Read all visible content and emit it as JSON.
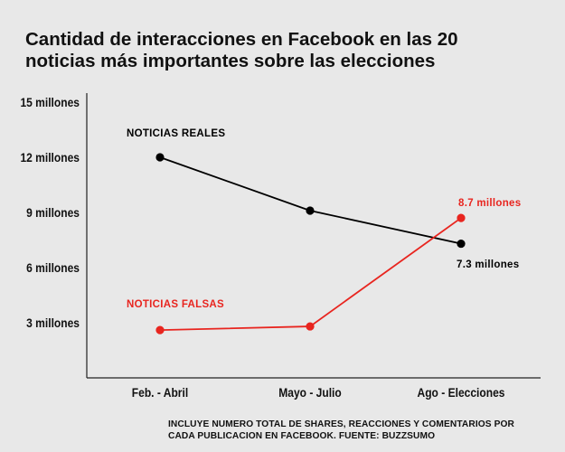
{
  "title_lines": [
    "Cantidad de interacciones en Facebook en las 20",
    "noticias más importantes sobre las elecciones"
  ],
  "footnote_lines": [
    "INCLUYE NUMERO TOTAL DE SHARES, REACCIONES Y COMENTARIOS POR",
    "CADA PUBLICACION EN FACEBOOK. FUENTE: BUZZSUMO"
  ],
  "chart_data": {
    "type": "line",
    "title": "Cantidad de interacciones en Facebook en las 20 noticias más importantes sobre las elecciones",
    "xlabel": "",
    "ylabel": "",
    "categories": [
      "Feb. - Abril",
      "Mayo - Julio",
      "Ago - Elecciones"
    ],
    "ylim": [
      0,
      15
    ],
    "yticks": [
      3,
      6,
      9,
      12,
      15
    ],
    "ytick_labels": [
      "3 millones",
      "6 millones",
      "9 millones",
      "12 millones",
      "15 millones"
    ],
    "grid": false,
    "series": [
      {
        "name": "NOTICIAS REALES",
        "color": "#000000",
        "values": [
          12,
          9.1,
          7.3
        ],
        "end_label": "7.3 millones"
      },
      {
        "name": "NOTICIAS FALSAS",
        "color": "#e8251f",
        "values": [
          2.6,
          2.8,
          8.7
        ],
        "end_label": "8.7 millones"
      }
    ]
  }
}
